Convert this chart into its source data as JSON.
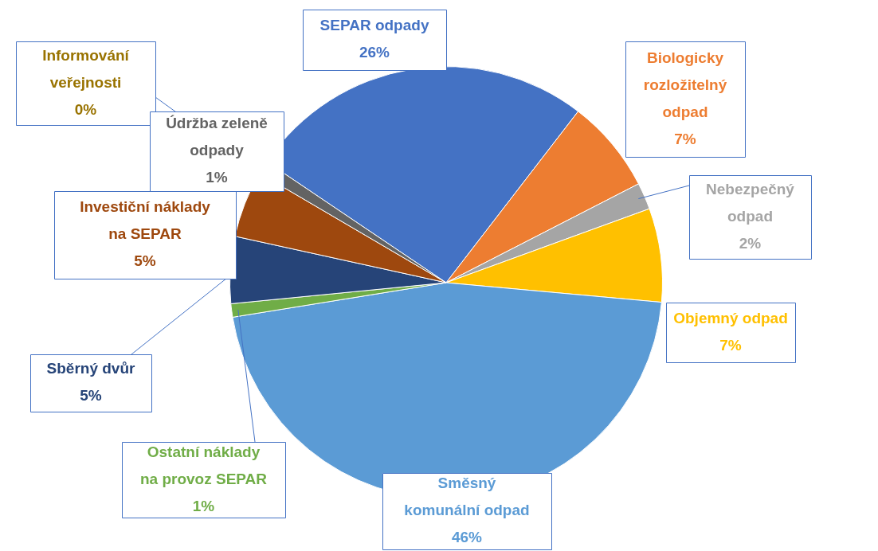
{
  "chart_data": {
    "type": "pie",
    "categories": [
      "SEPAR odpady",
      "Biologicky rozložitelný odpad",
      "Nebezpečný odpad",
      "Objemný odpad",
      "Směsný komunální odpad",
      "Ostatní náklady na provoz SEPAR",
      "Sběrný dvůr",
      "Investiční náklady na SEPAR",
      "Informování veřejnosti",
      "Údržba zeleně odpady"
    ],
    "values": [
      26,
      7,
      2,
      7,
      46,
      1,
      5,
      5,
      0,
      1
    ],
    "value_labels": [
      "26%",
      "7%",
      "2%",
      "7%",
      "46%",
      "1%",
      "5%",
      "5%",
      "0%",
      "1%"
    ],
    "colors": [
      "#4472c4",
      "#ed7d31",
      "#a5a5a5",
      "#ffc000",
      "#5b9bd5",
      "#70ad47",
      "#264478",
      "#9e480e",
      "#997300",
      "#636363"
    ],
    "legend": false
  }
}
